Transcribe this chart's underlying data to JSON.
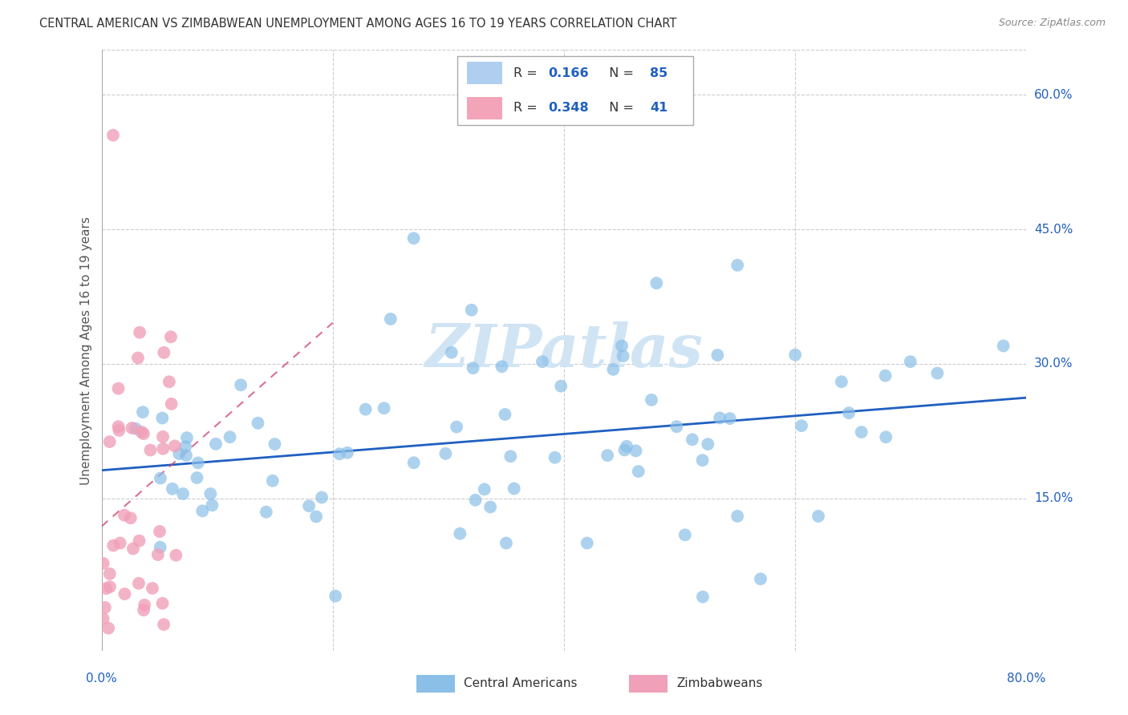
{
  "title": "CENTRAL AMERICAN VS ZIMBABWEAN UNEMPLOYMENT AMONG AGES 16 TO 19 YEARS CORRELATION CHART",
  "source": "Source: ZipAtlas.com",
  "ylabel": "Unemployment Among Ages 16 to 19 years",
  "ytick_labels": [
    "60.0%",
    "45.0%",
    "30.0%",
    "15.0%"
  ],
  "ytick_values": [
    0.6,
    0.45,
    0.3,
    0.15
  ],
  "xtick_labels_left": "0.0%",
  "xtick_labels_right": "80.0%",
  "xlim": [
    0.0,
    0.8
  ],
  "ylim": [
    -0.02,
    0.65
  ],
  "blue_color": "#8BBFE8",
  "pink_color": "#F0A0B8",
  "line_blue": "#2060C0",
  "line_pink": "#D04070",
  "legend_box_blue": "#B0CFF0",
  "legend_box_pink": "#F4A4B8",
  "R_blue": 0.166,
  "N_blue": 85,
  "R_pink": 0.348,
  "N_pink": 41,
  "watermark": "ZIPatlas",
  "watermark_color": "#D0E4F4",
  "background": "#FFFFFF",
  "grid_color": "#CCCCCC",
  "blue_seed": 42,
  "pink_seed": 99
}
